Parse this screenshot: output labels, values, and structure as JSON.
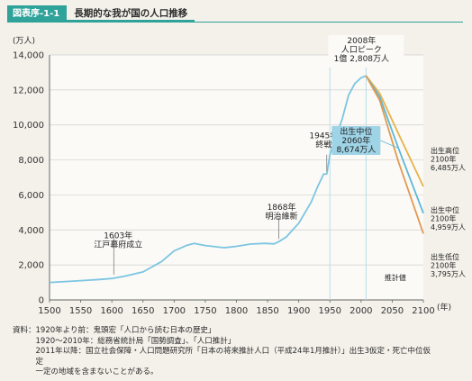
{
  "header": {
    "badge": "図表序-1-1",
    "title": "長期的な我が国の人口推移"
  },
  "chart_data": {
    "type": "line",
    "y_unit": "(万人)",
    "x_unit": "(年)",
    "xlim": [
      1500,
      2100
    ],
    "ylim": [
      0,
      14000
    ],
    "x_ticks": [
      "1500",
      "1550",
      "1600",
      "1650",
      "1700",
      "1750",
      "1800",
      "1850",
      "1900",
      "1950",
      "2000",
      "2050",
      "2100"
    ],
    "y_ticks": [
      "0",
      "2,000",
      "4,000",
      "6,000",
      "8,000",
      "10,000",
      "12,000",
      "14,000"
    ],
    "grid": "horizontal",
    "series": [
      {
        "name": "",
        "color": "#7cc5e2",
        "points": [
          [
            1500,
            1000
          ],
          [
            1550,
            1100
          ],
          [
            1580,
            1170
          ],
          [
            1600,
            1227
          ],
          [
            1620,
            1350
          ],
          [
            1650,
            1600
          ],
          [
            1680,
            2200
          ],
          [
            1700,
            2800
          ],
          [
            1721,
            3128
          ],
          [
            1732,
            3230
          ],
          [
            1750,
            3110
          ],
          [
            1780,
            2987
          ],
          [
            1800,
            3065
          ],
          [
            1822,
            3191
          ],
          [
            1846,
            3230
          ],
          [
            1860,
            3200
          ],
          [
            1868,
            3330
          ],
          [
            1880,
            3600
          ],
          [
            1900,
            4385
          ],
          [
            1920,
            5596
          ],
          [
            1930,
            6445
          ],
          [
            1940,
            7193
          ],
          [
            1945,
            7199
          ],
          [
            1950,
            8320
          ],
          [
            1960,
            9342
          ],
          [
            1970,
            10372
          ],
          [
            1980,
            11706
          ],
          [
            1990,
            12361
          ],
          [
            2000,
            12693
          ],
          [
            2008,
            12808
          ]
        ]
      },
      {
        "name": "出生高位",
        "color": "#e8b24a",
        "points": [
          [
            2008,
            12808
          ],
          [
            2030,
            11800
          ],
          [
            2060,
            9500
          ],
          [
            2100,
            6485
          ]
        ]
      },
      {
        "name": "出生中位",
        "color": "#5bb8d8",
        "points": [
          [
            2008,
            12808
          ],
          [
            2030,
            11600
          ],
          [
            2060,
            8674
          ],
          [
            2100,
            4959
          ]
        ]
      },
      {
        "name": "出生低位",
        "color": "#e09a52",
        "points": [
          [
            2008,
            12808
          ],
          [
            2030,
            11400
          ],
          [
            2060,
            7900
          ],
          [
            2100,
            3795
          ]
        ]
      }
    ],
    "ref_lines": [
      1950,
      2008
    ],
    "annotations": {
      "edo": [
        "1603年",
        "江戸幕府成立"
      ],
      "meiji": [
        "1868年",
        "明治維新"
      ],
      "war": [
        "1945年",
        "終戦"
      ],
      "peak": [
        "2008年",
        "人口ピーク",
        "1億 2,808万人"
      ],
      "mid2060": [
        "出生中位",
        "2060年",
        "8,674万人"
      ],
      "high2100": [
        "出生高位",
        "2100年",
        "6,485万人"
      ],
      "mid2100": [
        "出生中位",
        "2100年",
        "4,959万人"
      ],
      "low2100": [
        "出生低位",
        "2100年",
        "3,795万人"
      ],
      "small": "推計値"
    }
  },
  "notes": [
    "資料：1920年より前：鬼頭宏「人口から読む日本の歴史」",
    "　　　1920～2010年：総務省統計局「国勢調査」、「人口推計」",
    "　　　2011年以降：国立社会保障・人口問題研究所「日本の将来推計人口（平成24年1月推計）」出生3仮定・死亡中位仮",
    "　　　定",
    "　　　一定の地域を含まないことがある。"
  ]
}
